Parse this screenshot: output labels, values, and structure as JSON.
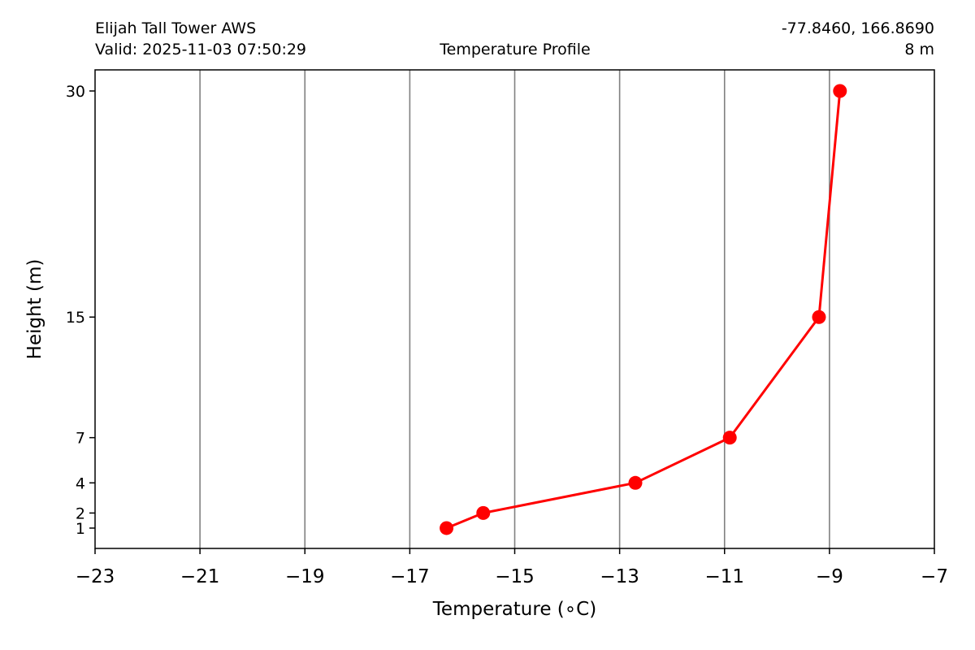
{
  "header": {
    "station": "Elijah Tall Tower AWS",
    "valid": "Valid: 2025-11-03 07:50:29",
    "title": "Temperature Profile",
    "coords": "-77.8460, 166.8690",
    "elevation": "8 m"
  },
  "chart_data": {
    "type": "line",
    "title": "Temperature Profile",
    "xlabel": "Temperature (∘C)",
    "ylabel": "Height (m)",
    "xlim": [
      -23,
      -7
    ],
    "ylim": [
      -0.35,
      31.4
    ],
    "xticks": [
      -23,
      -21,
      -19,
      -17,
      -15,
      -13,
      -11,
      -9,
      -7
    ],
    "xtick_labels": [
      "−23",
      "−21",
      "−19",
      "−17",
      "−15",
      "−13",
      "−11",
      "−9",
      "−7"
    ],
    "yticks": [
      1,
      2,
      4,
      7,
      15,
      30
    ],
    "ytick_labels": [
      "1",
      "2",
      "4",
      "7",
      "15",
      "30"
    ],
    "grid": "vertical",
    "series": [
      {
        "color": "#ff0000",
        "points": [
          {
            "height": 1,
            "temperature": -16.3
          },
          {
            "height": 2,
            "temperature": -15.6
          },
          {
            "height": 4,
            "temperature": -12.7
          },
          {
            "height": 7,
            "temperature": -10.9
          },
          {
            "height": 15,
            "temperature": -9.2
          },
          {
            "height": 30,
            "temperature": -8.8
          }
        ]
      }
    ]
  }
}
